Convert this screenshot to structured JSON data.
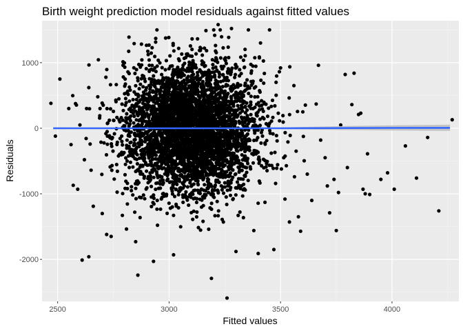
{
  "chart_data": {
    "type": "scatter",
    "title": "Birth weight prediction model residuals against fitted values",
    "xlabel": "Fitted values",
    "ylabel": "Residuals",
    "xlim": [
      2430,
      4300
    ],
    "ylim": [
      -2640,
      1640
    ],
    "x_ticks": [
      2500,
      3000,
      3500,
      4000
    ],
    "y_ticks": [
      -2000,
      -1000,
      0,
      1000
    ],
    "x_tick_labels": [
      "2500",
      "3000",
      "3500",
      "4000"
    ],
    "y_tick_labels": [
      "-2000",
      "-1000",
      "0",
      "1000"
    ],
    "grid": true,
    "panel_background": "#ebebeb",
    "point_color": "#000000",
    "smooth_line": {
      "color": "#3366ff",
      "ribbon_color": "#bdbdbd",
      "x": [
        2480,
        3000,
        3500,
        3800,
        4000,
        4260
      ],
      "y": [
        0,
        0,
        0,
        3,
        5,
        6
      ],
      "ribbon_lower": [
        -12,
        -6,
        -12,
        -28,
        -35,
        -42
      ],
      "ribbon_upper": [
        12,
        6,
        12,
        34,
        45,
        54
      ]
    },
    "cloud": {
      "n": 4300,
      "center_x": 3100,
      "sd_x": 150,
      "sd_y": 420,
      "x_range": [
        2540,
        3820
      ],
      "y_range": [
        -2300,
        1500
      ]
    },
    "outliers": [
      {
        "x": 2470,
        "y": 380
      },
      {
        "x": 2490,
        "y": -120
      },
      {
        "x": 2510,
        "y": 750
      },
      {
        "x": 2550,
        "y": 300
      },
      {
        "x": 2560,
        "y": -250
      },
      {
        "x": 2570,
        "y": -870
      },
      {
        "x": 2590,
        "y": -930
      },
      {
        "x": 2600,
        "y": 50
      },
      {
        "x": 2620,
        "y": -480
      },
      {
        "x": 2630,
        "y": 300
      },
      {
        "x": 2610,
        "y": -2010
      },
      {
        "x": 2640,
        "y": -1960
      },
      {
        "x": 2640,
        "y": 620
      },
      {
        "x": 2650,
        "y": -640
      },
      {
        "x": 2660,
        "y": -1190
      },
      {
        "x": 2680,
        "y": 480
      },
      {
        "x": 2700,
        "y": -1300
      },
      {
        "x": 2720,
        "y": -1620
      },
      {
        "x": 2740,
        "y": -1650
      },
      {
        "x": 2820,
        "y": 1390
      },
      {
        "x": 2850,
        "y": -1730
      },
      {
        "x": 2860,
        "y": -2240
      },
      {
        "x": 2930,
        "y": -2030
      },
      {
        "x": 2940,
        "y": 1370
      },
      {
        "x": 3020,
        "y": -1930
      },
      {
        "x": 3190,
        "y": -2290
      },
      {
        "x": 3260,
        "y": -2590
      },
      {
        "x": 3220,
        "y": 1580
      },
      {
        "x": 3280,
        "y": 1520
      },
      {
        "x": 3300,
        "y": -1880
      },
      {
        "x": 3310,
        "y": -1330
      },
      {
        "x": 3380,
        "y": -1560
      },
      {
        "x": 3400,
        "y": -1910
      },
      {
        "x": 3410,
        "y": 1300
      },
      {
        "x": 3470,
        "y": -1850
      },
      {
        "x": 3480,
        "y": 700
      },
      {
        "x": 3500,
        "y": 920
      },
      {
        "x": 3520,
        "y": -1080
      },
      {
        "x": 3540,
        "y": -1430
      },
      {
        "x": 3560,
        "y": 650
      },
      {
        "x": 3570,
        "y": -350
      },
      {
        "x": 3580,
        "y": -1350
      },
      {
        "x": 3590,
        "y": -1570
      },
      {
        "x": 3600,
        "y": 250
      },
      {
        "x": 3620,
        "y": -700
      },
      {
        "x": 3640,
        "y": -1100
      },
      {
        "x": 3660,
        "y": 370
      },
      {
        "x": 3670,
        "y": 960
      },
      {
        "x": 3680,
        "y": -180
      },
      {
        "x": 3700,
        "y": -450
      },
      {
        "x": 3710,
        "y": -880
      },
      {
        "x": 3720,
        "y": -1290
      },
      {
        "x": 3740,
        "y": -780
      },
      {
        "x": 3750,
        "y": -1560
      },
      {
        "x": 3760,
        "y": -980
      },
      {
        "x": 3770,
        "y": 50
      },
      {
        "x": 3790,
        "y": 820
      },
      {
        "x": 3800,
        "y": -600
      },
      {
        "x": 3820,
        "y": 360
      },
      {
        "x": 3830,
        "y": 840
      },
      {
        "x": 3850,
        "y": 210
      },
      {
        "x": 3860,
        "y": 230
      },
      {
        "x": 3870,
        "y": -930
      },
      {
        "x": 3880,
        "y": -1000
      },
      {
        "x": 3890,
        "y": -390
      },
      {
        "x": 3900,
        "y": -1010
      },
      {
        "x": 3950,
        "y": -780
      },
      {
        "x": 3980,
        "y": -680
      },
      {
        "x": 4010,
        "y": -930
      },
      {
        "x": 4060,
        "y": -270
      },
      {
        "x": 4110,
        "y": -760
      },
      {
        "x": 4160,
        "y": -140
      },
      {
        "x": 4210,
        "y": -1260
      },
      {
        "x": 4270,
        "y": 130
      }
    ]
  }
}
